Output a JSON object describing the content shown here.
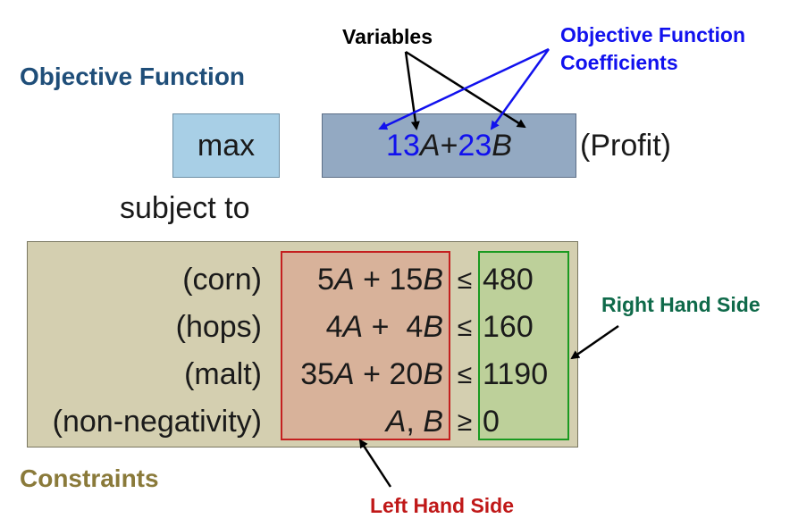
{
  "objective": {
    "title": "Objective Function",
    "keyword": "max",
    "coef_a": "13",
    "var_a": "A",
    "plus": "+",
    "coef_b": "23",
    "var_b": "B",
    "note": "(Profit)"
  },
  "labels": {
    "variables": "Variables",
    "coeff_line1": "Objective Function",
    "coeff_line2": "Coefficients",
    "subject_to": "subject to",
    "right_hand_side": "Right Hand Side",
    "left_hand_side": "Left Hand Side",
    "constraints": "Constraints"
  },
  "constraints": [
    {
      "name": "(corn)",
      "c1": "5",
      "v1": "A",
      "plus": " + ",
      "c2": "15",
      "v2": "B",
      "op": "≤",
      "rhs": "480"
    },
    {
      "name": "(hops)",
      "c1": "4",
      "v1": "A",
      "plus": " +  ",
      "c2": "4",
      "v2": "B",
      "op": "≤",
      "rhs": "160"
    },
    {
      "name": "(malt)",
      "c1": "35",
      "v1": "A",
      "plus": " + ",
      "c2": "20",
      "v2": "B",
      "op": "≤",
      "rhs": "1190"
    },
    {
      "name": "(non-negativity)",
      "c1": "",
      "v1": "A",
      "plus": ", ",
      "c2": "",
      "v2": "B",
      "op": "≥",
      "rhs": "0"
    }
  ],
  "colors": {
    "coefficient_blue": "#1111ee",
    "objective_title": "#1f4e79",
    "lhs_border": "#c41f1f",
    "rhs_border": "#1a9a20",
    "rhs_label": "#0f6a4a",
    "constraints_label": "#8a7a3a"
  }
}
